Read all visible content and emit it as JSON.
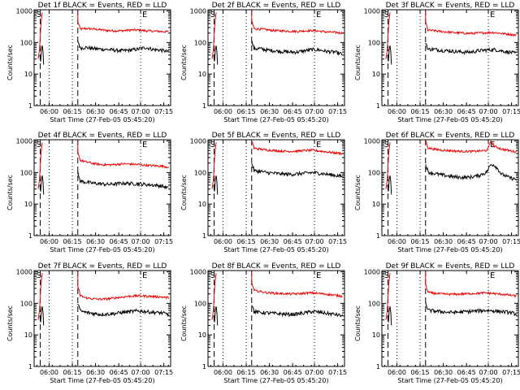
{
  "colors": {
    "events": "#000000",
    "lld": "#ee0000",
    "frame": "#000000"
  },
  "chart_data": [
    {
      "type": "line",
      "title": "Det 1f BLACK = Events, RED = LLD",
      "xlabel": "Start Time (27-Feb-05 05:45:20)",
      "ylabel": "Counts/sec",
      "ticks_x": [
        "06:00",
        "06:15",
        "06:30",
        "06:45",
        "07:00",
        "07:15"
      ],
      "ticks_y": [
        "1",
        "10",
        "100",
        "1000"
      ],
      "markers": {
        "s": "S",
        "e": "E"
      },
      "red_level": [
        260,
        280,
        270,
        255,
        240,
        235,
        238,
        250,
        250,
        235,
        230,
        225,
        220
      ],
      "black_level": [
        65,
        70,
        65,
        62,
        60,
        57,
        55,
        58,
        62,
        70,
        60,
        58,
        50
      ],
      "spike": null
    },
    {
      "type": "line",
      "title": "Det 2f BLACK = Events, RED = LLD",
      "xlabel": "Start Time (27-Feb-05 05:45:20)",
      "ylabel": "Counts/sec",
      "ticks_x": [
        "06:00",
        "06:15",
        "06:30",
        "06:45",
        "07:00",
        "07:15"
      ],
      "ticks_y": [
        "1",
        "10",
        "100",
        "1000"
      ],
      "markers": {
        "s": "S",
        "e": "E"
      },
      "red_level": [
        280,
        270,
        255,
        240,
        235,
        230,
        225,
        235,
        240,
        230,
        215,
        210,
        200
      ],
      "black_level": [
        62,
        65,
        58,
        55,
        52,
        50,
        50,
        55,
        60,
        58,
        52,
        50,
        42
      ],
      "spike": null
    },
    {
      "type": "line",
      "title": "Det 3f BLACK = Events, RED = LLD",
      "xlabel": "Start Time (27-Feb-05 05:45:20)",
      "ylabel": "Counts/sec",
      "ticks_x": [
        "06:00",
        "06:15",
        "06:30",
        "06:45",
        "07:00",
        "07:15"
      ],
      "ticks_y": [
        "1",
        "10",
        "100",
        "1000"
      ],
      "markers": {
        "s": "S",
        "e": "E"
      },
      "red_level": [
        250,
        240,
        225,
        215,
        205,
        200,
        195,
        200,
        205,
        210,
        195,
        185,
        170
      ],
      "black_level": [
        60,
        62,
        57,
        55,
        52,
        50,
        50,
        55,
        58,
        60,
        55,
        50,
        45
      ],
      "spike": null
    },
    {
      "type": "line",
      "title": "Det 4f BLACK = Events, RED = LLD",
      "xlabel": "Start Time (27-Feb-05 05:45:20)",
      "ylabel": "Counts/sec",
      "ticks_x": [
        "06:00",
        "06:15",
        "06:30",
        "06:45",
        "07:00",
        "07:15"
      ],
      "ticks_y": [
        "1",
        "10",
        "100",
        "1000"
      ],
      "markers": {
        "s": "S",
        "e": "E"
      },
      "red_level": [
        260,
        220,
        195,
        180,
        175,
        180,
        190,
        185,
        180,
        170,
        165,
        160,
        150
      ],
      "black_level": [
        55,
        50,
        46,
        44,
        42,
        44,
        46,
        45,
        44,
        42,
        40,
        38,
        32
      ],
      "spike": null
    },
    {
      "type": "line",
      "title": "Det 5f BLACK = Events, RED = LLD",
      "xlabel": "Start Time (27-Feb-05 05:45:20)",
      "ylabel": "Counts/sec",
      "ticks_x": [
        "06:00",
        "06:15",
        "06:30",
        "06:45",
        "07:00",
        "07:15"
      ],
      "ticks_y": [
        "1",
        "10",
        "100",
        "1000"
      ],
      "markers": {
        "s": "S",
        "e": "E"
      },
      "red_level": [
        600,
        560,
        520,
        500,
        480,
        470,
        480,
        500,
        510,
        480,
        450,
        420,
        400
      ],
      "black_level": [
        115,
        110,
        100,
        95,
        90,
        88,
        90,
        95,
        100,
        95,
        88,
        82,
        75
      ],
      "spike": null
    },
    {
      "type": "line",
      "title": "Det 6f BLACK = Events, RED = LLD",
      "xlabel": "Start Time (27-Feb-05 05:45:20)",
      "ylabel": "Counts/sec",
      "ticks_x": [
        "06:00",
        "06:15",
        "06:30",
        "06:45",
        "07:00",
        "07:15"
      ],
      "ticks_y": [
        "1",
        "10",
        "100",
        "1000"
      ],
      "markers": {
        "s": "S",
        "e": "E"
      },
      "red_level": [
        620,
        560,
        520,
        500,
        480,
        470,
        470,
        480,
        500,
        700,
        560,
        500,
        450
      ],
      "black_level": [
        110,
        95,
        85,
        78,
        72,
        70,
        72,
        80,
        100,
        180,
        90,
        70,
        60
      ],
      "spike": {
        "fraction": 0.72,
        "red": 1000,
        "black": 180
      }
    },
    {
      "type": "line",
      "title": "Det 7f BLACK = Events, RED = LLD",
      "xlabel": "Start Time (27-Feb-05 05:45:20)",
      "ylabel": "Counts/sec",
      "ticks_x": [
        "06:00",
        "06:15",
        "06:30",
        "06:45",
        "07:00",
        "07:15"
      ],
      "ticks_y": [
        "1",
        "10",
        "100",
        "1000"
      ],
      "markers": {
        "s": "S",
        "e": "E"
      },
      "red_level": [
        190,
        150,
        140,
        135,
        140,
        150,
        160,
        170,
        175,
        170,
        165,
        160,
        150
      ],
      "black_level": [
        60,
        52,
        48,
        45,
        46,
        48,
        52,
        55,
        58,
        55,
        52,
        50,
        45
      ],
      "spike": null
    },
    {
      "type": "line",
      "title": "Det 8f BLACK = Events, RED = LLD",
      "xlabel": "Start Time (27-Feb-05 05:45:20)",
      "ylabel": "Counts/sec",
      "ticks_x": [
        "06:00",
        "06:15",
        "06:30",
        "06:45",
        "07:00",
        "07:15"
      ],
      "ticks_y": [
        "1",
        "10",
        "100",
        "1000"
      ],
      "markers": {
        "s": "S",
        "e": "E"
      },
      "red_level": [
        260,
        240,
        220,
        210,
        205,
        200,
        200,
        210,
        215,
        205,
        195,
        180,
        170
      ],
      "black_level": [
        55,
        52,
        50,
        48,
        46,
        45,
        46,
        50,
        55,
        52,
        48,
        45,
        40
      ],
      "spike": null
    },
    {
      "type": "line",
      "title": "Det 9f BLACK = Events, RED = LLD",
      "xlabel": "Start Time (27-Feb-05 05:45:20)",
      "ylabel": "Counts/sec",
      "ticks_x": [
        "06:00",
        "06:15",
        "06:30",
        "06:45",
        "07:00",
        "07:15"
      ],
      "ticks_y": [
        "1",
        "10",
        "100",
        "1000"
      ],
      "markers": {
        "s": "S",
        "e": "E"
      },
      "red_level": [
        230,
        210,
        200,
        195,
        195,
        200,
        205,
        210,
        215,
        205,
        195,
        185,
        170
      ],
      "black_level": [
        62,
        58,
        55,
        52,
        52,
        54,
        56,
        58,
        60,
        58,
        55,
        52,
        46
      ],
      "spike": null
    }
  ]
}
